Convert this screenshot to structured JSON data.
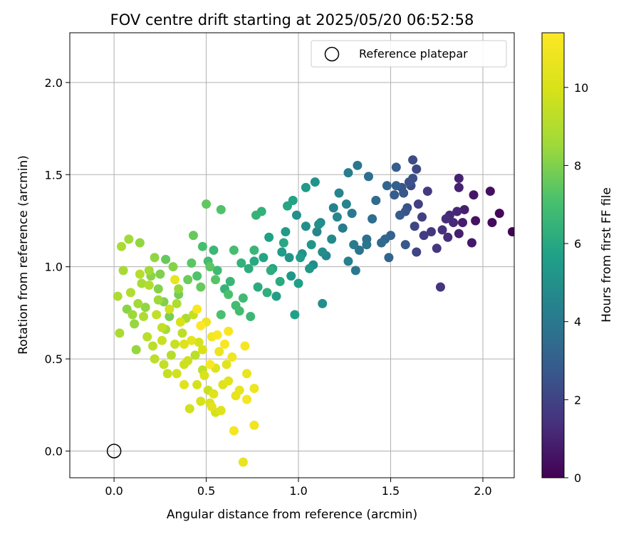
{
  "chart_data": {
    "type": "scatter",
    "title": "FOV centre drift starting at 2025/05/20 06:52:58",
    "xlabel": "Angular distance from reference (arcmin)",
    "ylabel": "Rotation from reference (arcmin)",
    "xlim": [
      -0.24,
      2.17
    ],
    "ylim": [
      -0.145,
      2.27
    ],
    "xticks": [
      "0.0",
      "0.5",
      "1.0",
      "1.5",
      "2.0"
    ],
    "yticks": [
      "0.0",
      "0.5",
      "1.0",
      "1.5",
      "2.0"
    ],
    "grid": true,
    "legend": {
      "position": "upper right",
      "entries": [
        "Reference platepar"
      ]
    },
    "reference_point": {
      "x": 0.0,
      "y": 0.0,
      "marker": "open-circle"
    },
    "colorbar": {
      "label": "Hours from first FF file",
      "range": [
        0,
        11.4
      ],
      "ticks": [
        "0",
        "2",
        "4",
        "6",
        "8",
        "10"
      ],
      "colormap": "viridis"
    },
    "points": [
      {
        "x": 2.16,
        "y": 1.19,
        "h": 0.1
      },
      {
        "x": 2.09,
        "y": 1.29,
        "h": 0.2
      },
      {
        "x": 2.05,
        "y": 1.24,
        "h": 0.3
      },
      {
        "x": 2.04,
        "y": 1.41,
        "h": 0.4
      },
      {
        "x": 1.96,
        "y": 1.25,
        "h": 0.5
      },
      {
        "x": 1.95,
        "y": 1.39,
        "h": 0.6
      },
      {
        "x": 1.94,
        "y": 1.13,
        "h": 0.7
      },
      {
        "x": 1.89,
        "y": 1.24,
        "h": 0.8
      },
      {
        "x": 1.87,
        "y": 1.18,
        "h": 0.9
      },
      {
        "x": 1.87,
        "y": 1.43,
        "h": 1.0
      },
      {
        "x": 1.87,
        "y": 1.48,
        "h": 1.0
      },
      {
        "x": 1.86,
        "y": 1.3,
        "h": 1.1
      },
      {
        "x": 1.84,
        "y": 1.24,
        "h": 1.2
      },
      {
        "x": 1.81,
        "y": 1.16,
        "h": 1.3
      },
      {
        "x": 1.8,
        "y": 1.26,
        "h": 1.3
      },
      {
        "x": 1.78,
        "y": 1.2,
        "h": 1.4
      },
      {
        "x": 1.77,
        "y": 0.89,
        "h": 1.5
      },
      {
        "x": 1.75,
        "y": 1.1,
        "h": 1.6
      },
      {
        "x": 1.7,
        "y": 1.41,
        "h": 1.7
      },
      {
        "x": 1.68,
        "y": 1.17,
        "h": 1.8
      },
      {
        "x": 1.65,
        "y": 1.34,
        "h": 1.9
      },
      {
        "x": 1.64,
        "y": 1.08,
        "h": 2.0
      },
      {
        "x": 1.63,
        "y": 1.22,
        "h": 2.1
      },
      {
        "x": 1.64,
        "y": 1.53,
        "h": 2.2
      },
      {
        "x": 1.62,
        "y": 1.58,
        "h": 2.3
      },
      {
        "x": 1.62,
        "y": 1.48,
        "h": 2.4
      },
      {
        "x": 1.6,
        "y": 1.46,
        "h": 2.5
      },
      {
        "x": 1.58,
        "y": 1.3,
        "h": 2.6
      },
      {
        "x": 1.57,
        "y": 1.4,
        "h": 2.7
      },
      {
        "x": 1.55,
        "y": 1.28,
        "h": 2.8
      },
      {
        "x": 1.53,
        "y": 1.54,
        "h": 2.9
      },
      {
        "x": 1.53,
        "y": 1.44,
        "h": 3.0
      },
      {
        "x": 1.5,
        "y": 1.17,
        "h": 3.1
      },
      {
        "x": 1.49,
        "y": 1.05,
        "h": 3.2
      },
      {
        "x": 1.48,
        "y": 1.44,
        "h": 3.2
      },
      {
        "x": 1.47,
        "y": 1.15,
        "h": 3.3
      },
      {
        "x": 1.45,
        "y": 1.13,
        "h": 3.4
      },
      {
        "x": 1.42,
        "y": 1.36,
        "h": 3.5
      },
      {
        "x": 1.38,
        "y": 1.49,
        "h": 3.6
      },
      {
        "x": 1.37,
        "y": 1.15,
        "h": 3.7
      },
      {
        "x": 1.37,
        "y": 1.12,
        "h": 3.8
      },
      {
        "x": 1.32,
        "y": 1.55,
        "h": 3.9
      },
      {
        "x": 1.31,
        "y": 0.98,
        "h": 4.0
      },
      {
        "x": 1.3,
        "y": 1.12,
        "h": 4.1
      },
      {
        "x": 1.27,
        "y": 1.51,
        "h": 4.2
      },
      {
        "x": 1.27,
        "y": 1.03,
        "h": 4.3
      },
      {
        "x": 1.26,
        "y": 1.34,
        "h": 4.4
      },
      {
        "x": 1.22,
        "y": 1.4,
        "h": 4.5
      },
      {
        "x": 1.21,
        "y": 1.27,
        "h": 4.6
      },
      {
        "x": 1.18,
        "y": 1.15,
        "h": 4.7
      },
      {
        "x": 1.13,
        "y": 1.08,
        "h": 4.8
      },
      {
        "x": 1.13,
        "y": 0.8,
        "h": 4.9
      },
      {
        "x": 1.11,
        "y": 1.23,
        "h": 5.0
      },
      {
        "x": 1.09,
        "y": 1.46,
        "h": 5.1
      },
      {
        "x": 1.07,
        "y": 1.12,
        "h": 5.2
      },
      {
        "x": 1.06,
        "y": 0.99,
        "h": 5.3
      },
      {
        "x": 1.04,
        "y": 1.43,
        "h": 5.4
      },
      {
        "x": 1.01,
        "y": 1.05,
        "h": 5.5
      },
      {
        "x": 1.0,
        "y": 0.91,
        "h": 5.6
      },
      {
        "x": 0.98,
        "y": 0.74,
        "h": 5.7
      },
      {
        "x": 0.97,
        "y": 1.36,
        "h": 5.8
      },
      {
        "x": 0.94,
        "y": 1.33,
        "h": 5.9
      },
      {
        "x": 0.92,
        "y": 1.13,
        "h": 6.0
      },
      {
        "x": 0.9,
        "y": 0.92,
        "h": 6.1
      },
      {
        "x": 0.85,
        "y": 0.98,
        "h": 6.2
      },
      {
        "x": 0.83,
        "y": 0.86,
        "h": 6.3
      },
      {
        "x": 0.8,
        "y": 1.3,
        "h": 6.4
      },
      {
        "x": 0.77,
        "y": 1.28,
        "h": 6.5
      },
      {
        "x": 0.76,
        "y": 1.09,
        "h": 6.6
      },
      {
        "x": 0.74,
        "y": 0.73,
        "h": 6.7
      },
      {
        "x": 0.7,
        "y": 0.83,
        "h": 6.8
      },
      {
        "x": 0.68,
        "y": 0.76,
        "h": 6.9
      },
      {
        "x": 0.65,
        "y": 1.09,
        "h": 7.0
      },
      {
        "x": 0.62,
        "y": 0.85,
        "h": 7.1
      },
      {
        "x": 0.58,
        "y": 1.31,
        "h": 7.2
      },
      {
        "x": 0.55,
        "y": 0.93,
        "h": 7.3
      },
      {
        "x": 0.52,
        "y": 1.0,
        "h": 7.4
      },
      {
        "x": 0.5,
        "y": 1.34,
        "h": 7.5
      },
      {
        "x": 0.47,
        "y": 0.89,
        "h": 7.6
      },
      {
        "x": 0.43,
        "y": 1.17,
        "h": 7.6
      },
      {
        "x": 0.4,
        "y": 0.93,
        "h": 7.7
      },
      {
        "x": 0.35,
        "y": 0.85,
        "h": 7.8
      },
      {
        "x": 0.3,
        "y": 0.73,
        "h": 7.9
      },
      {
        "x": 0.27,
        "y": 0.81,
        "h": 8.0
      },
      {
        "x": 0.24,
        "y": 0.88,
        "h": 8.1
      },
      {
        "x": 0.2,
        "y": 0.95,
        "h": 8.2
      },
      {
        "x": 0.17,
        "y": 0.78,
        "h": 8.3
      },
      {
        "x": 0.14,
        "y": 1.13,
        "h": 8.3
      },
      {
        "x": 0.12,
        "y": 0.55,
        "h": 8.4
      },
      {
        "x": 0.1,
        "y": 0.74,
        "h": 8.5
      },
      {
        "x": 0.08,
        "y": 1.15,
        "h": 8.6
      },
      {
        "x": 0.05,
        "y": 0.98,
        "h": 8.7
      },
      {
        "x": 0.04,
        "y": 1.11,
        "h": 8.8
      },
      {
        "x": 0.03,
        "y": 0.64,
        "h": 8.8
      },
      {
        "x": 0.02,
        "y": 0.84,
        "h": 8.9
      },
      {
        "x": 0.09,
        "y": 0.86,
        "h": 9.0
      },
      {
        "x": 0.14,
        "y": 0.96,
        "h": 9.1
      },
      {
        "x": 0.18,
        "y": 0.62,
        "h": 9.2
      },
      {
        "x": 0.22,
        "y": 0.5,
        "h": 9.3
      },
      {
        "x": 0.26,
        "y": 0.67,
        "h": 9.4
      },
      {
        "x": 0.29,
        "y": 0.42,
        "h": 9.5
      },
      {
        "x": 0.33,
        "y": 0.58,
        "h": 9.6
      },
      {
        "x": 0.38,
        "y": 0.47,
        "h": 9.7
      },
      {
        "x": 0.41,
        "y": 0.23,
        "h": 9.8
      },
      {
        "x": 0.45,
        "y": 0.36,
        "h": 9.9
      },
      {
        "x": 0.48,
        "y": 0.55,
        "h": 10.0
      },
      {
        "x": 0.52,
        "y": 0.26,
        "h": 10.1
      },
      {
        "x": 0.55,
        "y": 0.45,
        "h": 10.2
      },
      {
        "x": 0.58,
        "y": 0.22,
        "h": 10.3
      },
      {
        "x": 0.62,
        "y": 0.38,
        "h": 10.4
      },
      {
        "x": 0.66,
        "y": 0.3,
        "h": 10.5
      },
      {
        "x": 0.7,
        "y": -0.06,
        "h": 10.6
      },
      {
        "x": 0.72,
        "y": 0.42,
        "h": 10.7
      },
      {
        "x": 0.76,
        "y": 0.34,
        "h": 10.8
      },
      {
        "x": 0.76,
        "y": 0.14,
        "h": 10.9
      },
      {
        "x": 0.65,
        "y": 0.11,
        "h": 11.0
      },
      {
        "x": 0.71,
        "y": 0.57,
        "h": 11.1
      },
      {
        "x": 0.6,
        "y": 0.58,
        "h": 11.2
      },
      {
        "x": 0.56,
        "y": 0.63,
        "h": 11.3
      },
      {
        "x": 0.52,
        "y": 0.47,
        "h": 11.3
      },
      {
        "x": 0.47,
        "y": 0.68,
        "h": 11.4
      },
      {
        "x": 0.5,
        "y": 0.7,
        "h": 10.8
      },
      {
        "x": 0.53,
        "y": 0.62,
        "h": 11.0
      },
      {
        "x": 0.45,
        "y": 0.77,
        "h": 11.2
      },
      {
        "x": 0.42,
        "y": 0.6,
        "h": 10.5
      },
      {
        "x": 0.38,
        "y": 0.58,
        "h": 10.2
      },
      {
        "x": 0.36,
        "y": 0.7,
        "h": 10.0
      },
      {
        "x": 0.33,
        "y": 0.93,
        "h": 10.6
      },
      {
        "x": 0.3,
        "y": 0.77,
        "h": 9.8
      },
      {
        "x": 0.26,
        "y": 0.6,
        "h": 9.6
      },
      {
        "x": 0.23,
        "y": 0.74,
        "h": 9.4
      },
      {
        "x": 0.21,
        "y": 0.57,
        "h": 9.2
      },
      {
        "x": 0.19,
        "y": 0.9,
        "h": 9.0
      },
      {
        "x": 0.16,
        "y": 0.73,
        "h": 8.9
      },
      {
        "x": 0.13,
        "y": 0.8,
        "h": 8.6
      },
      {
        "x": 0.11,
        "y": 0.69,
        "h": 8.4
      },
      {
        "x": 0.07,
        "y": 0.77,
        "h": 8.2
      },
      {
        "x": 0.24,
        "y": 0.82,
        "h": 8.5
      },
      {
        "x": 0.28,
        "y": 0.66,
        "h": 8.7
      },
      {
        "x": 0.31,
        "y": 0.52,
        "h": 9.1
      },
      {
        "x": 0.34,
        "y": 0.8,
        "h": 8.9
      },
      {
        "x": 0.37,
        "y": 0.64,
        "h": 9.3
      },
      {
        "x": 0.4,
        "y": 0.49,
        "h": 9.7
      },
      {
        "x": 0.43,
        "y": 0.74,
        "h": 9.5
      },
      {
        "x": 0.46,
        "y": 0.59,
        "h": 9.9
      },
      {
        "x": 0.49,
        "y": 0.41,
        "h": 10.1
      },
      {
        "x": 0.54,
        "y": 0.31,
        "h": 10.3
      },
      {
        "x": 0.57,
        "y": 0.54,
        "h": 10.7
      },
      {
        "x": 0.61,
        "y": 0.47,
        "h": 10.4
      },
      {
        "x": 0.64,
        "y": 0.51,
        "h": 10.9
      },
      {
        "x": 0.68,
        "y": 0.33,
        "h": 10.6
      },
      {
        "x": 0.72,
        "y": 0.28,
        "h": 11.0
      },
      {
        "x": 0.59,
        "y": 0.36,
        "h": 10.2
      },
      {
        "x": 0.55,
        "y": 0.21,
        "h": 9.9
      },
      {
        "x": 0.51,
        "y": 0.33,
        "h": 9.6
      },
      {
        "x": 0.48,
        "y": 0.44,
        "h": 9.4
      },
      {
        "x": 0.44,
        "y": 0.52,
        "h": 9.2
      },
      {
        "x": 0.39,
        "y": 0.72,
        "h": 8.8
      },
      {
        "x": 0.35,
        "y": 0.88,
        "h": 8.4
      },
      {
        "x": 0.32,
        "y": 1.0,
        "h": 8.1
      },
      {
        "x": 0.28,
        "y": 1.04,
        "h": 7.6
      },
      {
        "x": 0.25,
        "y": 0.96,
        "h": 8.0
      },
      {
        "x": 0.22,
        "y": 1.05,
        "h": 8.3
      },
      {
        "x": 0.19,
        "y": 0.98,
        "h": 8.6
      },
      {
        "x": 0.15,
        "y": 0.91,
        "h": 8.7
      },
      {
        "x": 0.42,
        "y": 1.02,
        "h": 7.4
      },
      {
        "x": 0.45,
        "y": 0.95,
        "h": 7.2
      },
      {
        "x": 0.48,
        "y": 1.11,
        "h": 7.0
      },
      {
        "x": 0.51,
        "y": 1.03,
        "h": 6.9
      },
      {
        "x": 0.54,
        "y": 1.09,
        "h": 6.7
      },
      {
        "x": 0.56,
        "y": 0.98,
        "h": 6.8
      },
      {
        "x": 0.6,
        "y": 0.88,
        "h": 6.5
      },
      {
        "x": 0.63,
        "y": 0.92,
        "h": 6.6
      },
      {
        "x": 0.66,
        "y": 0.79,
        "h": 6.9
      },
      {
        "x": 0.69,
        "y": 1.02,
        "h": 6.4
      },
      {
        "x": 0.73,
        "y": 0.99,
        "h": 6.2
      },
      {
        "x": 0.76,
        "y": 1.03,
        "h": 6.0
      },
      {
        "x": 0.78,
        "y": 0.89,
        "h": 6.1
      },
      {
        "x": 0.81,
        "y": 1.05,
        "h": 5.9
      },
      {
        "x": 0.84,
        "y": 1.16,
        "h": 5.7
      },
      {
        "x": 0.86,
        "y": 0.99,
        "h": 5.8
      },
      {
        "x": 0.88,
        "y": 0.84,
        "h": 5.6
      },
      {
        "x": 0.91,
        "y": 1.08,
        "h": 5.5
      },
      {
        "x": 0.93,
        "y": 1.19,
        "h": 5.4
      },
      {
        "x": 0.95,
        "y": 1.05,
        "h": 5.2
      },
      {
        "x": 0.96,
        "y": 0.95,
        "h": 5.3
      },
      {
        "x": 0.99,
        "y": 1.28,
        "h": 5.0
      },
      {
        "x": 1.02,
        "y": 1.07,
        "h": 5.1
      },
      {
        "x": 1.04,
        "y": 1.22,
        "h": 4.9
      },
      {
        "x": 1.08,
        "y": 1.01,
        "h": 4.8
      },
      {
        "x": 1.1,
        "y": 1.19,
        "h": 4.6
      },
      {
        "x": 1.12,
        "y": 1.24,
        "h": 4.7
      },
      {
        "x": 1.15,
        "y": 1.06,
        "h": 4.5
      },
      {
        "x": 1.19,
        "y": 1.32,
        "h": 4.3
      },
      {
        "x": 1.24,
        "y": 1.21,
        "h": 4.1
      },
      {
        "x": 1.29,
        "y": 1.29,
        "h": 4.0
      },
      {
        "x": 1.33,
        "y": 1.09,
        "h": 3.8
      },
      {
        "x": 1.4,
        "y": 1.26,
        "h": 3.6
      },
      {
        "x": 1.52,
        "y": 1.39,
        "h": 2.9
      },
      {
        "x": 1.56,
        "y": 1.43,
        "h": 2.6
      },
      {
        "x": 1.59,
        "y": 1.32,
        "h": 2.4
      },
      {
        "x": 1.61,
        "y": 1.44,
        "h": 2.2
      },
      {
        "x": 1.58,
        "y": 1.12,
        "h": 2.7
      },
      {
        "x": 1.67,
        "y": 1.27,
        "h": 1.9
      },
      {
        "x": 1.72,
        "y": 1.19,
        "h": 1.6
      },
      {
        "x": 1.82,
        "y": 1.28,
        "h": 1.2
      },
      {
        "x": 1.9,
        "y": 1.31,
        "h": 0.9
      },
      {
        "x": 0.58,
        "y": 0.74,
        "h": 7.1
      },
      {
        "x": 0.62,
        "y": 0.65,
        "h": 11.2
      },
      {
        "x": 0.38,
        "y": 0.36,
        "h": 10.3
      },
      {
        "x": 0.27,
        "y": 0.47,
        "h": 9.5
      },
      {
        "x": 0.34,
        "y": 0.42,
        "h": 9.8
      },
      {
        "x": 0.47,
        "y": 0.27,
        "h": 10.0
      },
      {
        "x": 0.53,
        "y": 0.24,
        "h": 10.4
      }
    ]
  }
}
